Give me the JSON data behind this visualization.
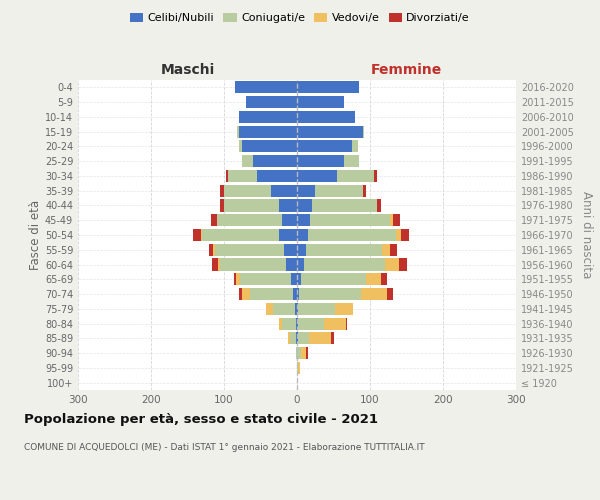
{
  "age_groups": [
    "100+",
    "95-99",
    "90-94",
    "85-89",
    "80-84",
    "75-79",
    "70-74",
    "65-69",
    "60-64",
    "55-59",
    "50-54",
    "45-49",
    "40-44",
    "35-39",
    "30-34",
    "25-29",
    "20-24",
    "15-19",
    "10-14",
    "5-9",
    "0-4"
  ],
  "birth_years": [
    "≤ 1920",
    "1921-1925",
    "1926-1930",
    "1931-1935",
    "1936-1940",
    "1941-1945",
    "1946-1950",
    "1951-1955",
    "1956-1960",
    "1961-1965",
    "1966-1970",
    "1971-1975",
    "1976-1980",
    "1981-1985",
    "1986-1990",
    "1991-1995",
    "1996-2000",
    "2001-2005",
    "2006-2010",
    "2011-2015",
    "2016-2020"
  ],
  "male": {
    "celibi": [
      0,
      0,
      0,
      2,
      2,
      3,
      5,
      8,
      15,
      18,
      25,
      20,
      25,
      35,
      55,
      60,
      75,
      80,
      80,
      70,
      85
    ],
    "coniugati": [
      0,
      0,
      2,
      8,
      18,
      30,
      60,
      70,
      90,
      95,
      105,
      90,
      75,
      65,
      40,
      15,
      5,
      2,
      0,
      0,
      0
    ],
    "vedovi": [
      0,
      0,
      0,
      3,
      5,
      10,
      10,
      5,
      3,
      2,
      2,
      0,
      0,
      0,
      0,
      0,
      0,
      0,
      0,
      0,
      0
    ],
    "divorziati": [
      0,
      0,
      0,
      0,
      0,
      0,
      5,
      3,
      8,
      5,
      10,
      8,
      5,
      5,
      2,
      0,
      0,
      0,
      0,
      0,
      0
    ]
  },
  "female": {
    "nubili": [
      0,
      0,
      0,
      2,
      2,
      2,
      3,
      5,
      10,
      12,
      15,
      18,
      20,
      25,
      55,
      65,
      75,
      90,
      80,
      65,
      85
    ],
    "coniugate": [
      0,
      2,
      5,
      15,
      35,
      50,
      85,
      90,
      110,
      105,
      120,
      110,
      90,
      65,
      50,
      20,
      8,
      2,
      0,
      0,
      0
    ],
    "vedove": [
      0,
      2,
      8,
      30,
      30,
      25,
      35,
      20,
      20,
      10,
      8,
      3,
      0,
      0,
      0,
      0,
      0,
      0,
      0,
      0,
      0
    ],
    "divorziate": [
      0,
      0,
      2,
      3,
      2,
      0,
      8,
      8,
      10,
      10,
      10,
      10,
      5,
      5,
      5,
      0,
      0,
      0,
      0,
      0,
      0
    ]
  },
  "colors": {
    "celibi_nubili": "#4472c4",
    "coniugati": "#b8cca0",
    "vedovi": "#f0c060",
    "divorziati": "#c0312b"
  },
  "xlim": 300,
  "title": "Popolazione per età, sesso e stato civile - 2021",
  "subtitle": "COMUNE DI ACQUEDOLCI (ME) - Dati ISTAT 1° gennaio 2021 - Elaborazione TUTTITALIA.IT",
  "ylabel_left": "Fasce di età",
  "ylabel_right": "Anni di nascita",
  "xlabel_left": "Maschi",
  "xlabel_right": "Femmine",
  "bg_color": "#f0f0eb",
  "plot_bg": "#ffffff",
  "legend_labels": [
    "Celibi/Nubili",
    "Coniugati/e",
    "Vedovi/e",
    "Divorziati/e"
  ]
}
